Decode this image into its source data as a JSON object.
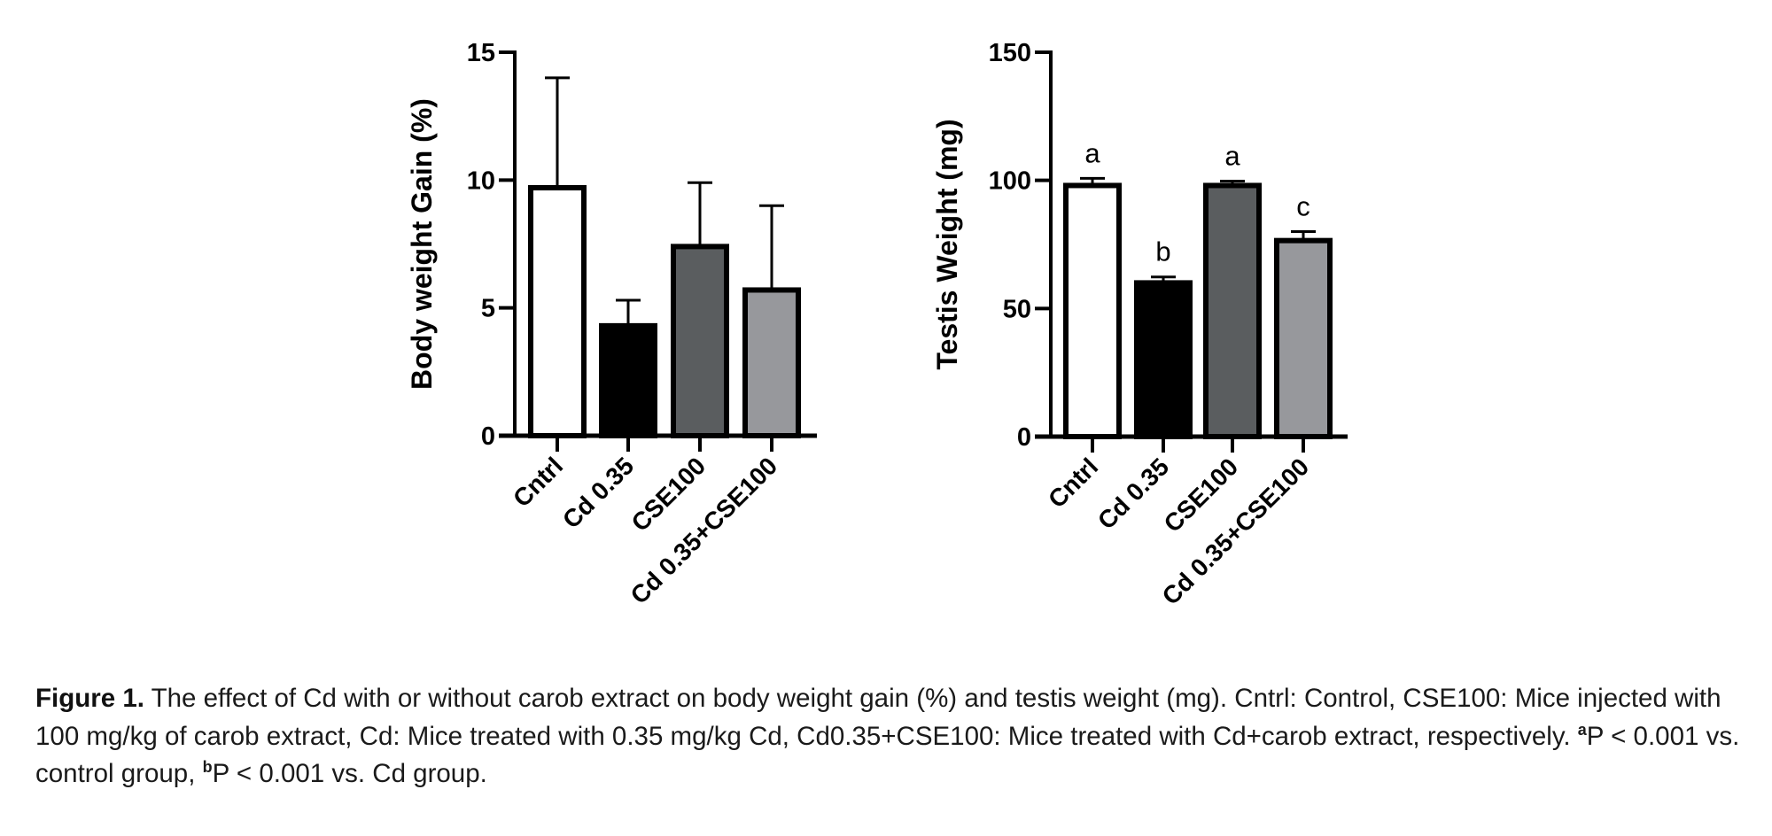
{
  "figure": {
    "label": "Figure 1.",
    "caption_main": " The effect of Cd with or without carob extract on body weight gain (%) and testis weight (mg). Cntrl: Control, CSE100: Mice injected with 100 mg/kg of carob extract, Cd: Mice treated with 0.35 mg/kg Cd, Cd0.35+CSE100: Mice treated with Cd+carob extract, respectively. ",
    "footnote_a_mark": "a",
    "footnote_a_text": "P < 0.001 vs. control group, ",
    "footnote_b_mark": "b",
    "footnote_b_text": "P < 0.001 vs. Cd group."
  },
  "chart_data": [
    {
      "type": "bar",
      "title": "",
      "xlabel": "",
      "ylabel": "Body weight Gain (%)",
      "categories": [
        "Cntrl",
        "Cd 0.35",
        "CSE100",
        "Cd 0.35+CSE100"
      ],
      "values": [
        9.7,
        4.3,
        7.4,
        5.7
      ],
      "error_upper": [
        14.0,
        5.3,
        9.9,
        9.0
      ],
      "colors": [
        "#ffffff",
        "#000000",
        "#5a5d5f",
        "#97989c"
      ],
      "significance_labels": [
        "",
        "",
        "",
        ""
      ],
      "ylim": [
        0,
        15
      ],
      "yticks": [
        0,
        5,
        10,
        15
      ],
      "grid": false
    },
    {
      "type": "bar",
      "title": "",
      "xlabel": "",
      "ylabel": "Testis Weight (mg)",
      "categories": [
        "Cntrl",
        "Cd 0.35",
        "CSE100",
        "Cd 0.35+CSE100"
      ],
      "values": [
        98,
        60,
        98,
        76.5
      ],
      "error_upper": [
        100.8,
        62.3,
        99.7,
        80
      ],
      "colors": [
        "#ffffff",
        "#000000",
        "#5a5d5f",
        "#97989c"
      ],
      "significance_labels": [
        "a",
        "b",
        "a",
        "c"
      ],
      "ylim": [
        0,
        150
      ],
      "yticks": [
        0,
        50,
        100,
        150
      ],
      "grid": false
    }
  ]
}
